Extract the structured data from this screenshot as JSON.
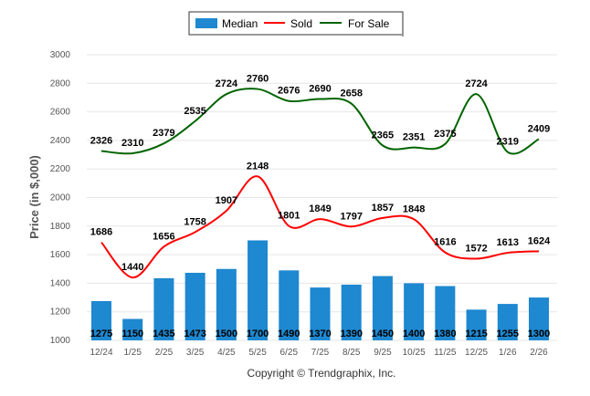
{
  "chart_data": {
    "type": "bar+line",
    "title": "",
    "ylabel": "Price (in $,000)",
    "xlabel": "",
    "footer": "Copyright © Trendgraphix, Inc.",
    "ylim": [
      1000,
      3000
    ],
    "yticks": [
      1000,
      1200,
      1400,
      1600,
      1800,
      2000,
      2200,
      2400,
      2600,
      2800,
      3000
    ],
    "grid": true,
    "legend_position": "top-center",
    "categories": [
      "12/24",
      "1/25",
      "2/25",
      "3/25",
      "4/25",
      "5/25",
      "6/25",
      "7/25",
      "8/25",
      "9/25",
      "10/25",
      "11/25",
      "12/25",
      "1/26",
      "2/26"
    ],
    "series": [
      {
        "name": "Median",
        "kind": "bar",
        "color": "#1e88d0",
        "values": [
          1275,
          1150,
          1435,
          1473,
          1500,
          1700,
          1490,
          1370,
          1390,
          1450,
          1400,
          1380,
          1215,
          1255,
          1300
        ]
      },
      {
        "name": "Sold",
        "kind": "line",
        "color": "#ff0000",
        "values": [
          1686,
          1440,
          1656,
          1758,
          1907,
          2148,
          1801,
          1849,
          1797,
          1857,
          1848,
          1616,
          1572,
          1613,
          1624
        ]
      },
      {
        "name": "For Sale",
        "kind": "line",
        "color": "#006400",
        "values": [
          2326,
          2310,
          2379,
          2535,
          2724,
          2760,
          2676,
          2690,
          2658,
          2365,
          2351,
          2375,
          2724,
          2319,
          2409
        ]
      }
    ]
  }
}
